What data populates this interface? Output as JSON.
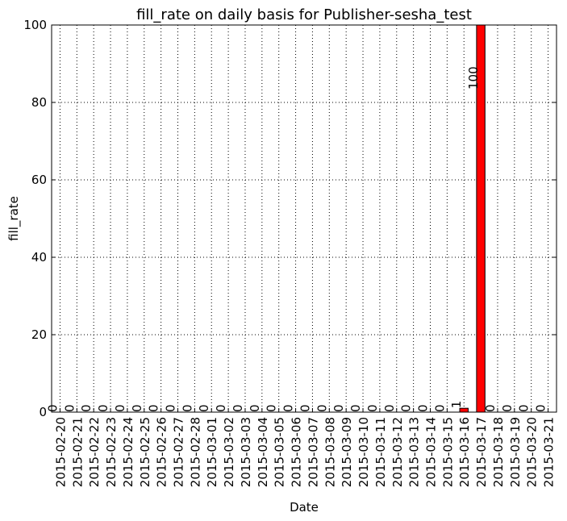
{
  "chart_data": {
    "type": "bar",
    "title": "fill_rate on daily basis for Publisher-sesha_test",
    "x_label": "Date",
    "y_label": "fill_rate",
    "categories": [
      "2015-02-20",
      "2015-02-21",
      "2015-02-22",
      "2015-02-23",
      "2015-02-24",
      "2015-02-25",
      "2015-02-26",
      "2015-02-27",
      "2015-02-28",
      "2015-03-01",
      "2015-03-02",
      "2015-03-03",
      "2015-03-04",
      "2015-03-05",
      "2015-03-06",
      "2015-03-07",
      "2015-03-08",
      "2015-03-09",
      "2015-03-10",
      "2015-03-11",
      "2015-03-12",
      "2015-03-13",
      "2015-03-14",
      "2015-03-15",
      "2015-03-16",
      "2015-03-17",
      "2015-03-18",
      "2015-03-19",
      "2015-03-20",
      "2015-03-21"
    ],
    "values": [
      0,
      0,
      0,
      0,
      0,
      0,
      0,
      0,
      0,
      0,
      0,
      0,
      0,
      0,
      0,
      0,
      0,
      0,
      0,
      0,
      0,
      0,
      0,
      0,
      1,
      100,
      0,
      0,
      0,
      0
    ],
    "color": "#ff0000",
    "ylim": [
      0,
      100
    ],
    "yticks": [
      0,
      20,
      40,
      60,
      80,
      100
    ],
    "grid": true
  }
}
